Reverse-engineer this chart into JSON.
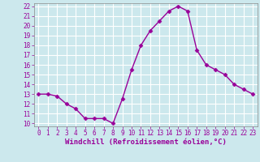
{
  "x": [
    0,
    1,
    2,
    3,
    4,
    5,
    6,
    7,
    8,
    9,
    10,
    11,
    12,
    13,
    14,
    15,
    16,
    17,
    18,
    19,
    20,
    21,
    22,
    23
  ],
  "y": [
    13,
    13,
    12.8,
    12,
    11.5,
    10.5,
    10.5,
    10.5,
    10,
    12.5,
    15.5,
    18,
    19.5,
    20.5,
    21.5,
    22,
    21.5,
    17.5,
    16,
    15.5,
    15,
    14,
    13.5,
    13
  ],
  "line_color": "#990099",
  "marker": "D",
  "marker_size": 2.5,
  "bg_color": "#cce8ed",
  "grid_color": "#ffffff",
  "xlabel": "Windchill (Refroidissement éolien,°C)",
  "xlabel_color": "#990099",
  "ylim_min": 10,
  "ylim_max": 22,
  "xlim_min": 0,
  "xlim_max": 23,
  "yticks": [
    10,
    11,
    12,
    13,
    14,
    15,
    16,
    17,
    18,
    19,
    20,
    21,
    22
  ],
  "xticks": [
    0,
    1,
    2,
    3,
    4,
    5,
    6,
    7,
    8,
    9,
    10,
    11,
    12,
    13,
    14,
    15,
    16,
    17,
    18,
    19,
    20,
    21,
    22,
    23
  ],
  "tick_fontsize": 5.5,
  "xlabel_fontsize": 6.5,
  "line_width": 1.0
}
